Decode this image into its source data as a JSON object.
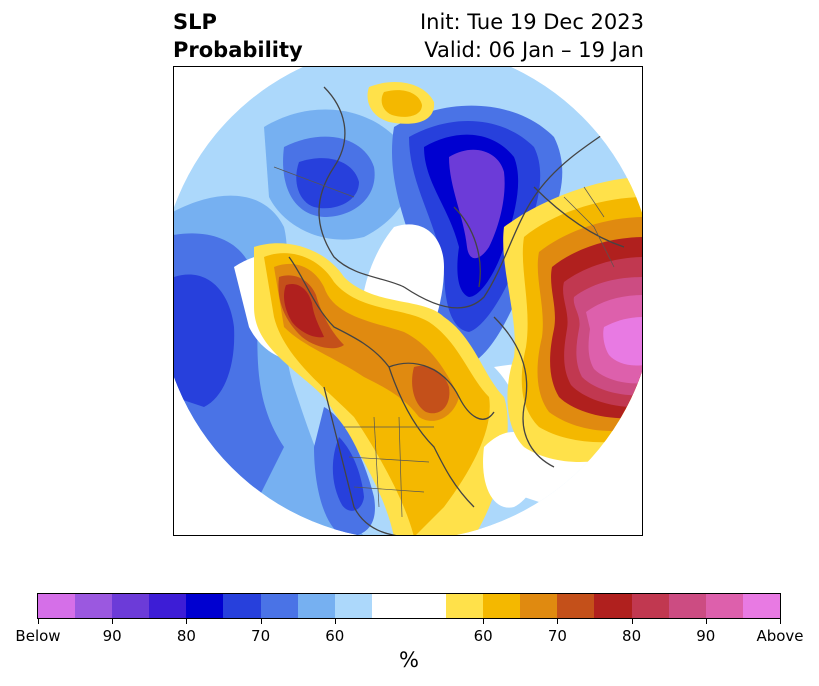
{
  "header": {
    "title_line1": "SLP",
    "title_line2": "Probability",
    "init": "Init: Tue 19 Dec 2023",
    "valid": "Valid: 06 Jan – 19 Jan"
  },
  "colorbar": {
    "unit": "%",
    "colors": [
      "#d56fe8",
      "#9b58e0",
      "#6c3bd8",
      "#3d1dd6",
      "#0000d0",
      "#2740dc",
      "#4a73e6",
      "#76b0f1",
      "#acd8fb",
      "#ffffff",
      "#ffe14a",
      "#f4b800",
      "#e08a10",
      "#c4501a",
      "#b0201e",
      "#c13850",
      "#cc4c82",
      "#dd60ac",
      "#e87ae3"
    ],
    "tick_labels": [
      "Below",
      "90",
      "80",
      "70",
      "60",
      "60",
      "70",
      "80",
      "90",
      "Above"
    ]
  },
  "legend_colors": {
    "below_strong": "#6c3bd8",
    "below_mid": "#2740dc",
    "below_weak": "#76b0f1",
    "neutral": "#ffffff",
    "above_weak": "#ffe14a",
    "above_mid": "#e08a10",
    "above_strong": "#b0201e",
    "above_extreme": "#dd60ac"
  }
}
